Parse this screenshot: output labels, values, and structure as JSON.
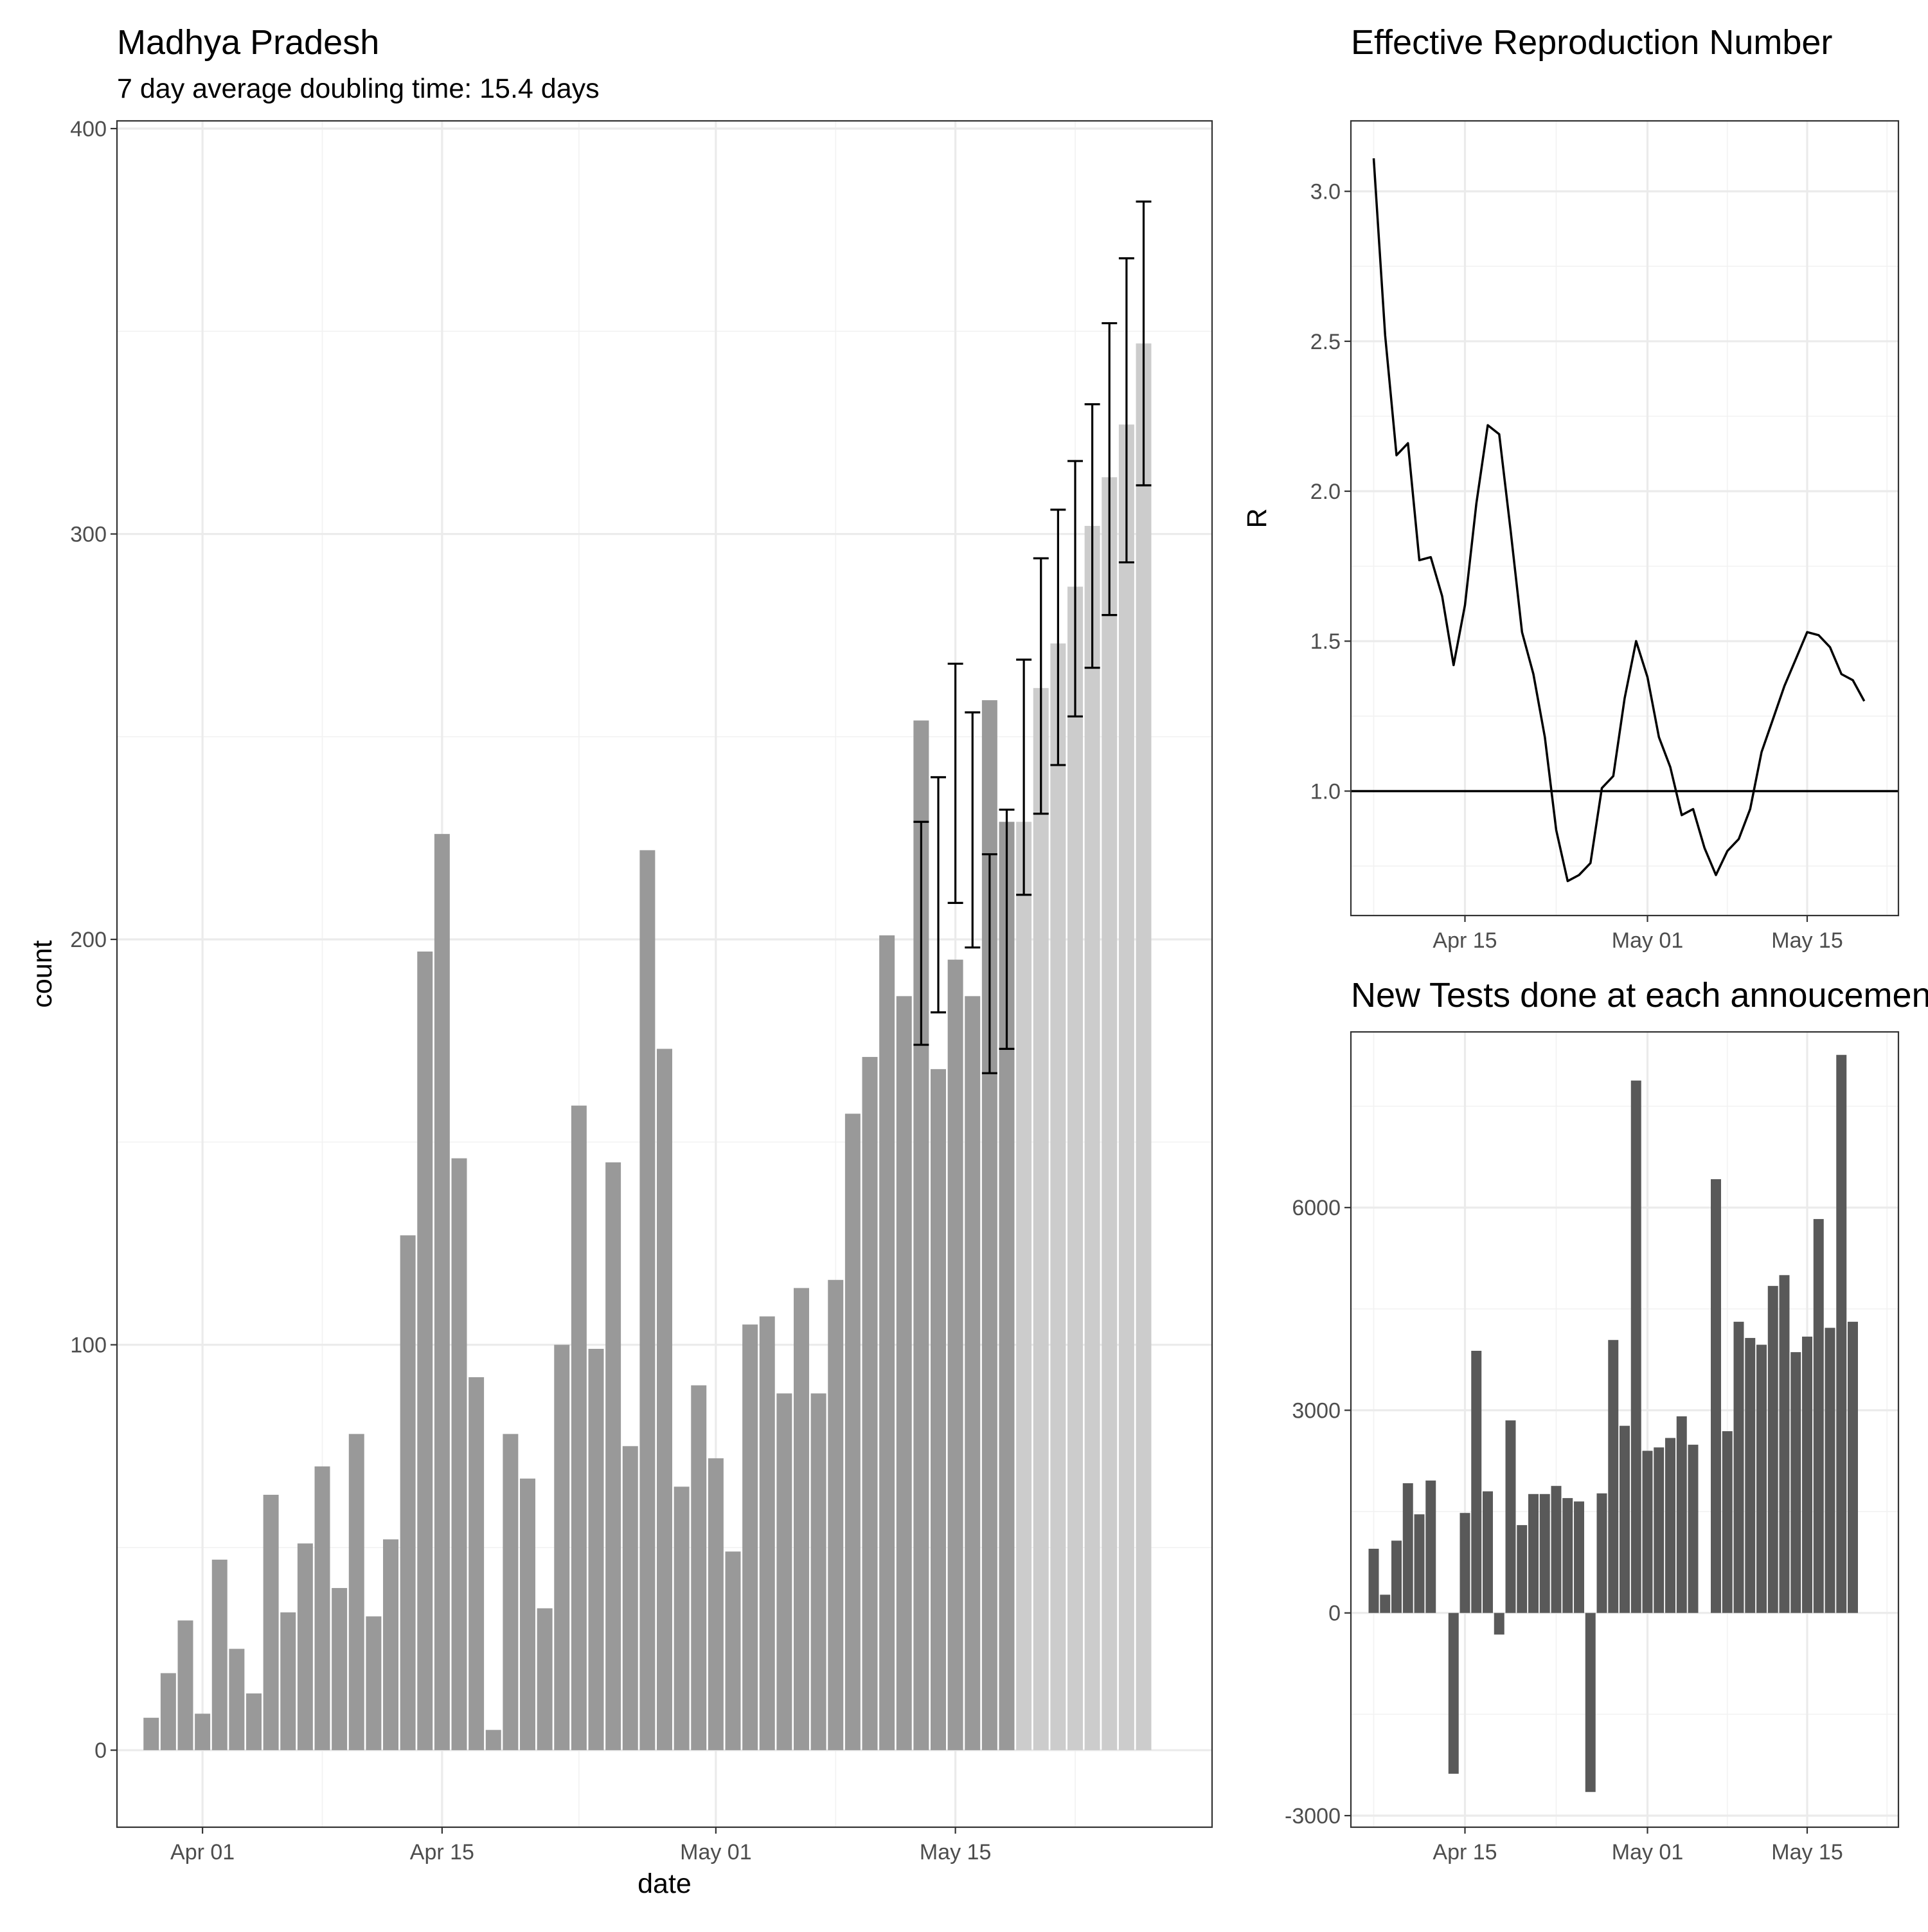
{
  "chart_data": [
    {
      "type": "bar",
      "title": "Madhya Pradesh",
      "subtitle": "7 day average doubling time: 15.4 days",
      "xlabel": "date",
      "ylabel": "count",
      "x_range": [
        "2020-03-27",
        "2020-05-30"
      ],
      "ylim": [
        -19,
        400
      ],
      "y_ticks": [
        0,
        100,
        200,
        300,
        400
      ],
      "x_ticks": [
        {
          "date": "2020-04-01",
          "label": "Apr 01"
        },
        {
          "date": "2020-04-15",
          "label": "Apr 15"
        },
        {
          "date": "2020-05-01",
          "label": "May 01"
        },
        {
          "date": "2020-05-15",
          "label": "May 15"
        }
      ],
      "grid": true,
      "colors": {
        "observed": "#999999",
        "projected": "#cccccc",
        "errorbar": "#000000"
      },
      "observed": {
        "start": "2020-03-29",
        "values": [
          8,
          19,
          32,
          9,
          47,
          25,
          14,
          63,
          34,
          51,
          70,
          40,
          78,
          33,
          52,
          127,
          197,
          226,
          146,
          92,
          5,
          78,
          67,
          35,
          100,
          159,
          99,
          145,
          75,
          222,
          173,
          65,
          90,
          72,
          49,
          105,
          107,
          88,
          114,
          88,
          116,
          157,
          171,
          201,
          186,
          254,
          168,
          195,
          186,
          259,
          229
        ]
      },
      "projected": {
        "start": "2020-05-19",
        "values": [
          229,
          262,
          273,
          287,
          302,
          314,
          327,
          347
        ]
      },
      "error_bars": [
        {
          "date": "2020-05-13",
          "low": 174,
          "high": 229
        },
        {
          "date": "2020-05-14",
          "low": 182,
          "high": 240
        },
        {
          "date": "2020-05-15",
          "low": 209,
          "high": 268
        },
        {
          "date": "2020-05-16",
          "low": 198,
          "high": 256
        },
        {
          "date": "2020-05-17",
          "low": 167,
          "high": 221
        },
        {
          "date": "2020-05-18",
          "low": 173,
          "high": 232
        },
        {
          "date": "2020-05-19",
          "low": 211,
          "high": 269
        },
        {
          "date": "2020-05-20",
          "low": 231,
          "high": 294
        },
        {
          "date": "2020-05-21",
          "low": 243,
          "high": 306
        },
        {
          "date": "2020-05-22",
          "low": 255,
          "high": 318
        },
        {
          "date": "2020-05-23",
          "low": 267,
          "high": 332
        },
        {
          "date": "2020-05-24",
          "low": 280,
          "high": 352
        },
        {
          "date": "2020-05-25",
          "low": 293,
          "high": 368
        },
        {
          "date": "2020-05-26",
          "low": 312,
          "high": 382
        }
      ]
    },
    {
      "type": "line",
      "title": "Effective Reproduction Number",
      "xlabel": "",
      "ylabel": "R",
      "x_range": [
        "2020-04-05",
        "2020-05-23"
      ],
      "ylim": [
        0.585,
        3.235
      ],
      "y_ticks": [
        1.0,
        1.5,
        2.0,
        2.5,
        3.0
      ],
      "y_tick_labels": [
        "1.0",
        "1.5",
        "2.0",
        "2.5",
        "3.0"
      ],
      "x_ticks": [
        {
          "date": "2020-04-15",
          "label": "Apr 15"
        },
        {
          "date": "2020-05-01",
          "label": "May 01"
        },
        {
          "date": "2020-05-15",
          "label": "May 15"
        }
      ],
      "reference_line": 1.0,
      "grid": true,
      "series": [
        {
          "start": "2020-04-07",
          "values": [
            3.11,
            2.52,
            2.12,
            2.16,
            1.77,
            1.78,
            1.65,
            1.42,
            1.62,
            1.96,
            2.22,
            2.19,
            1.87,
            1.53,
            1.39,
            1.18,
            0.87,
            0.7,
            0.72,
            0.76,
            1.01,
            1.05,
            1.31,
            1.5,
            1.38,
            1.18,
            1.08,
            0.92,
            0.94,
            0.81,
            0.72,
            0.8,
            0.84,
            0.94,
            1.13,
            1.24,
            1.35,
            1.44,
            1.53,
            1.52,
            1.48,
            1.39,
            1.37,
            1.3
          ]
        }
      ]
    },
    {
      "type": "bar",
      "title": "New Tests done at each annoucement",
      "xlabel": "",
      "ylabel": "",
      "x_range": [
        "2020-04-05",
        "2020-05-23"
      ],
      "ylim": [
        -3000,
        8600
      ],
      "y_ticks": [
        -3000,
        0,
        3000,
        6000
      ],
      "x_ticks": [
        {
          "date": "2020-04-15",
          "label": "Apr 15"
        },
        {
          "date": "2020-05-01",
          "label": "May 01"
        },
        {
          "date": "2020-05-15",
          "label": "May 15"
        }
      ],
      "grid": true,
      "colors": {
        "bar": "#595959"
      },
      "series": [
        {
          "start": "2020-04-07",
          "values": [
            950,
            270,
            1070,
            1920,
            1460,
            1960,
            null,
            -2380,
            1480,
            3880,
            1800,
            -320,
            2850,
            1300,
            1760,
            1760,
            1880,
            1700,
            1650,
            -2650,
            1770,
            4040,
            2770,
            7880,
            2400,
            2450,
            2590,
            2910,
            2490,
            null,
            6420,
            2690,
            4310,
            4070,
            3970,
            4840,
            5000,
            3860,
            4090,
            5830,
            4220,
            8260,
            4310
          ]
        }
      ]
    }
  ]
}
